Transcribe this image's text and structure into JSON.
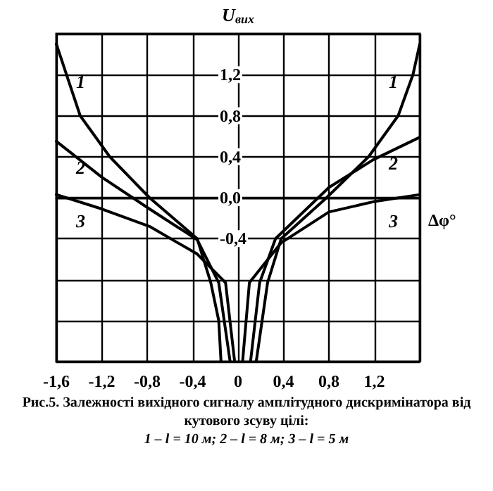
{
  "chart_data": {
    "type": "line",
    "ylabel": "U$_{вих}$",
    "xlabel": "Δφ°",
    "annotations": [
      "Рис.5. Залежності вихідного сигналу амплітудного дискримінатора від кутового зсуву цілі:",
      "1 – l = 10 м; 2 – l = 8 м; 3 – l = 5 м"
    ],
    "series": [
      {
        "name": "1",
        "color": "#000000",
        "x": [
          -1.6,
          -1.39,
          -1.13,
          -0.78,
          -0.36,
          -0.24,
          -0.17,
          -0.15,
          null,
          0.16,
          0.26,
          0.38,
          0.78,
          1.15,
          1.41,
          1.54,
          1.6
        ],
        "values": [
          1.5,
          0.8,
          0.4,
          0,
          -0.4,
          -0.83,
          -1.2,
          -1.6,
          null,
          -1.6,
          -0.83,
          -0.4,
          0,
          0.4,
          0.8,
          1.2,
          1.5
        ]
      },
      {
        "name": "2",
        "color": "#000000",
        "x": [
          -1.6,
          -1.2,
          -0.78,
          -0.36,
          -0.17,
          -0.07,
          null,
          0.11,
          0.19,
          0.33,
          0.8,
          1.19,
          1.6
        ],
        "values": [
          0.55,
          0.2,
          -0.11,
          -0.41,
          -0.83,
          -1.6,
          null,
          -1.6,
          -0.83,
          -0.4,
          0.1,
          0.37,
          0.59
        ]
      },
      {
        "name": "3",
        "color": "#000000",
        "x": [
          -1.6,
          -1.2,
          -0.78,
          -0.36,
          -0.11,
          -0.03,
          null,
          0.04,
          0.1,
          0.38,
          0.8,
          1.19,
          1.6
        ],
        "values": [
          0.03,
          -0.11,
          -0.28,
          -0.55,
          -0.83,
          -1.6,
          null,
          -1.6,
          -0.83,
          -0.44,
          -0.14,
          -0.04,
          0.03
        ]
      }
    ],
    "xlim": [
      -1.6,
      1.6
    ],
    "xticks": [
      {
        "value": -1.6,
        "label": "-1,6"
      },
      {
        "value": -1.2,
        "label": "-1,2"
      },
      {
        "value": -0.8,
        "label": "-0,8"
      },
      {
        "value": -0.4,
        "label": "-0,4"
      },
      {
        "value": 0,
        "label": "0"
      },
      {
        "value": 0.4,
        "label": "0,4"
      },
      {
        "value": 0.8,
        "label": "0,8"
      },
      {
        "value": 1.2,
        "label": "1,2"
      },
      {
        "value": 1.6,
        "label": null
      }
    ],
    "ylim": [
      -1.6,
      1.6
    ],
    "yticks": [
      {
        "value": -1.6,
        "label": null
      },
      {
        "value": -1.2,
        "label": null
      },
      {
        "value": -0.8,
        "label": null
      },
      {
        "value": -0.4,
        "label": "-0,4"
      },
      {
        "value": 0,
        "label": "0,0"
      },
      {
        "value": 0.4,
        "label": "0,4"
      },
      {
        "value": 0.8,
        "label": "0,8"
      },
      {
        "value": 1.2,
        "label": "1,2"
      },
      {
        "value": 1.6,
        "label": null
      }
    ],
    "grid": true,
    "legend": false,
    "marker": "none",
    "line_style": "solid"
  }
}
